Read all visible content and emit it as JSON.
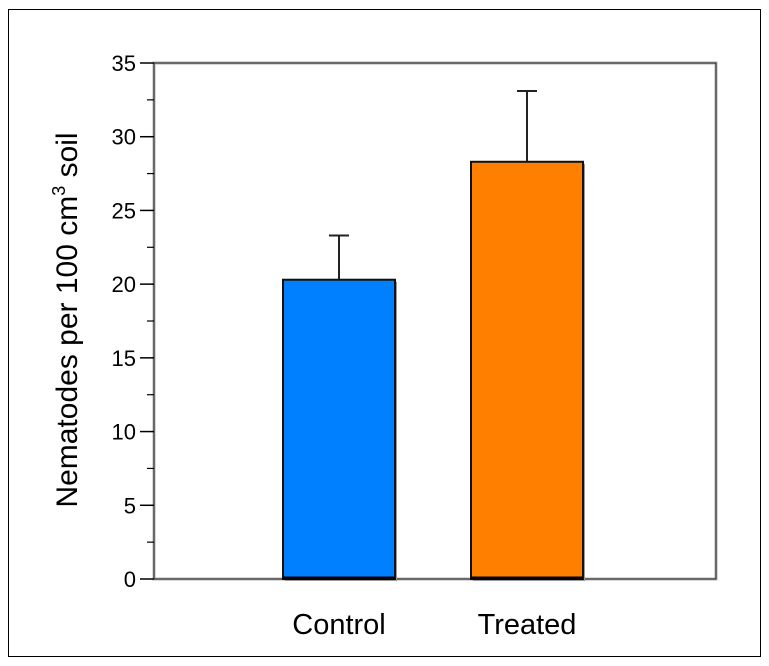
{
  "chart_data": {
    "type": "bar",
    "categories": [
      "Control",
      "Treated"
    ],
    "values": [
      20.3,
      28.3
    ],
    "errors": [
      3.0,
      4.8
    ],
    "ylabel": "Nematodes per 100 cm",
    "ylabel_superscript": "3",
    "ylabel_suffix": " soil",
    "ylim": [
      0,
      35
    ],
    "yticks": [
      "0",
      "5",
      "10",
      "15",
      "20",
      "25",
      "30",
      "35"
    ],
    "grid": false,
    "colors": [
      "#0080ff",
      "#ff8000"
    ]
  }
}
